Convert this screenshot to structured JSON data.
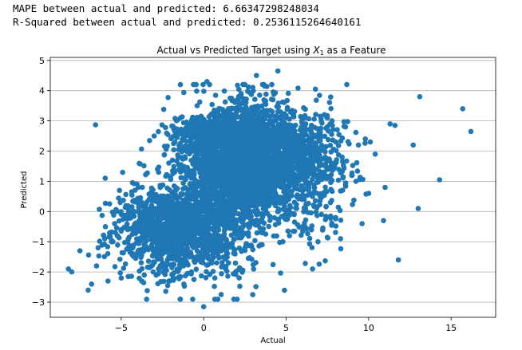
{
  "output": {
    "mape_line": "MAPE between actual and predicted: 6.66347298248034",
    "r2_line": "R-Squared between actual and predicted: 0.2536115264640161"
  },
  "chart_data": {
    "type": "scatter",
    "title": "Actual vs Predicted Target using X1 as a Feature",
    "title_parts": {
      "before": "Actual vs Predicted Target using ",
      "var": "X",
      "sub": "1",
      "after": " as a Feature"
    },
    "xlabel": "Actual",
    "ylabel": "Predicted",
    "xlim": [
      -9.3,
      17.7
    ],
    "ylim": [
      -3.5,
      5.1
    ],
    "xticks": [
      -5,
      0,
      5,
      10,
      15
    ],
    "xtick_labels": [
      "−5",
      "0",
      "5",
      "10",
      "15"
    ],
    "yticks": [
      -3,
      -2,
      -1,
      0,
      1,
      2,
      3,
      4,
      5
    ],
    "ytick_labels": [
      "−3",
      "−2",
      "−1",
      "0",
      "1",
      "2",
      "3",
      "4",
      "5"
    ],
    "grid": "horizontal",
    "marker_color": "#1f77b4",
    "points": {
      "x": [
        -8.2,
        -8.0,
        -7.0,
        -6.8,
        -6.4,
        -6.0,
        -5.4,
        -5.0,
        -4.6,
        -4.0,
        -3.6,
        -3.0,
        -2.8,
        -2.2,
        -1.8,
        -1.2,
        -0.4,
        0.0,
        0.2,
        1.6,
        3.2,
        3.7,
        4.5,
        6.6,
        9.6,
        10.1,
        10.9,
        11.3,
        11.6,
        11.8,
        12.7,
        13.0,
        13.1,
        14.3,
        15.7,
        16.2,
        0.0,
        -1.0,
        -2.0,
        -1.5,
        1.0,
        2.0,
        3.0,
        4.0,
        5.0,
        6.0,
        7.0,
        8.0,
        9.0,
        10.0,
        9.8,
        8.6,
        7.5,
        6.2,
        5.5,
        4.8,
        2.5,
        -0.5,
        -3.5,
        -4.5,
        -5.5,
        -6.5,
        -7.5,
        1.5,
        2.8,
        3.8,
        6.8,
        7.9,
        0.5,
        -2.6,
        5.2,
        8.3,
        10.4,
        11.0,
        -5.8,
        4.2,
        1.2,
        -0.8
      ],
      "y": [
        -1.9,
        -2.0,
        -2.6,
        -2.4,
        -1.2,
        -0.9,
        -0.4,
        -2.2,
        -0.6,
        -1.4,
        -2.1,
        2.5,
        1.4,
        1.2,
        -2.2,
        -2.4,
        -1.5,
        -3.15,
        4.3,
        3.75,
        4.5,
        4.15,
        4.65,
        -1.9,
        -0.4,
        2.3,
        -0.3,
        2.9,
        2.85,
        -1.6,
        2.2,
        0.1,
        3.8,
        1.05,
        3.4,
        2.65,
        0.2,
        0.6,
        -0.4,
        1.8,
        2.5,
        1.0,
        0.0,
        3.0,
        2.0,
        0.5,
        1.5,
        -0.2,
        1.2,
        0.6,
        2.4,
        2.8,
        3.1,
        1.4,
        0.9,
        -1.0,
        -1.2,
        -0.2,
        -0.5,
        0.0,
        -1.0,
        -1.8,
        -1.3,
        3.4,
        3.2,
        2.6,
        2.2,
        1.6,
        -1.7,
        0.3,
        -0.8,
        -0.9,
        1.9,
        0.8,
        -2.3,
        3.7,
        -0.9,
        2.9
      ]
    },
    "dense_clusters": [
      {
        "cx": 2.0,
        "cy": 1.6,
        "sx": 1.6,
        "sy": 0.95,
        "n": 1700
      },
      {
        "cx": -1.2,
        "cy": -0.5,
        "sx": 1.7,
        "sy": 0.55,
        "n": 900
      },
      {
        "cx": 4.8,
        "cy": 1.6,
        "sx": 1.5,
        "sy": 0.9,
        "n": 600
      },
      {
        "cx": 1.6,
        "cy": 2.6,
        "sx": 1.7,
        "sy": 0.35,
        "n": 500
      },
      {
        "cx": -2.5,
        "cy": -0.9,
        "sx": 1.8,
        "sy": 0.7,
        "n": 300
      },
      {
        "cx": 0.4,
        "cy": 0.0,
        "sx": 2.4,
        "sy": 1.3,
        "n": 500
      },
      {
        "cx": 6.0,
        "cy": 2.0,
        "sx": 1.3,
        "sy": 0.7,
        "n": 180
      },
      {
        "cx": 7.0,
        "cy": 1.0,
        "sx": 1.2,
        "sy": 1.0,
        "n": 120
      }
    ]
  }
}
